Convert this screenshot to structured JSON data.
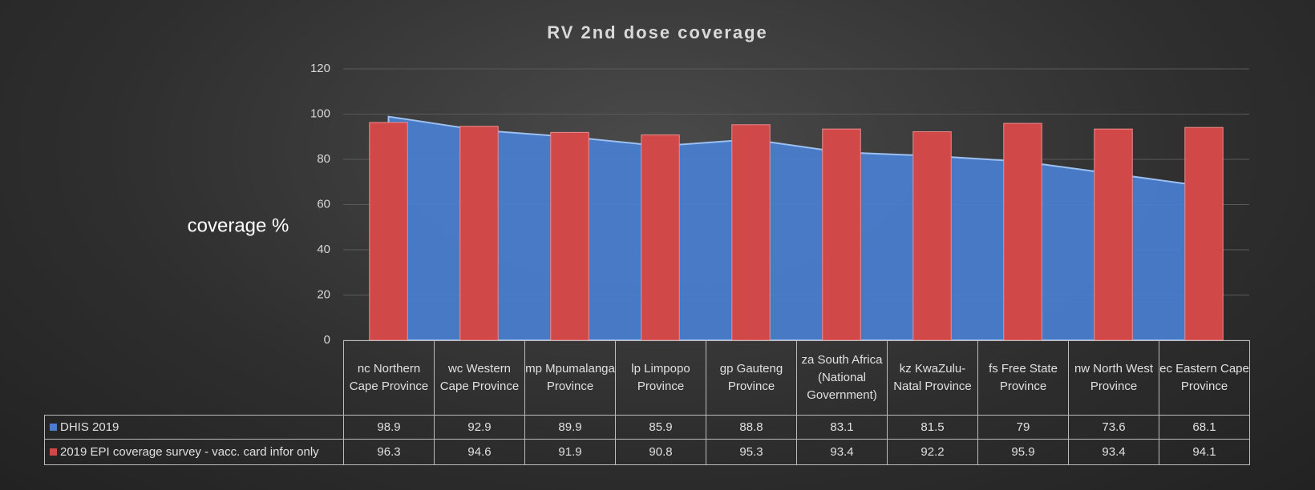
{
  "chart_data": {
    "type": "combo",
    "title": "RV 2nd dose coverage",
    "y_label": "coverage %",
    "categories": [
      "nc Northern Cape Province",
      "wc Western Cape Province",
      "mp Mpumalanga Province",
      "lp Limpopo Province",
      "gp Gauteng Province",
      "za South Africa (National Government)",
      "kz KwaZulu-Natal Province",
      "fs Free State Province",
      "nw North West Province",
      "ec Eastern Cape Province"
    ],
    "series": [
      {
        "name": "DHIS 2019",
        "type": "area",
        "color": "#4a7fd0",
        "values": [
          98.9,
          92.9,
          89.9,
          85.9,
          88.8,
          83.1,
          81.5,
          79,
          73.6,
          68.1
        ]
      },
      {
        "name": "2019  EPI coverage survey - vacc. card infor only",
        "type": "bar",
        "color": "#d04848",
        "values": [
          96.3,
          94.6,
          91.9,
          90.8,
          95.3,
          93.4,
          92.2,
          95.9,
          93.4,
          94.1
        ]
      }
    ],
    "ylim": [
      0,
      120
    ],
    "yticks": [
      0,
      20,
      40,
      60,
      80,
      100,
      120
    ],
    "grid": true
  }
}
